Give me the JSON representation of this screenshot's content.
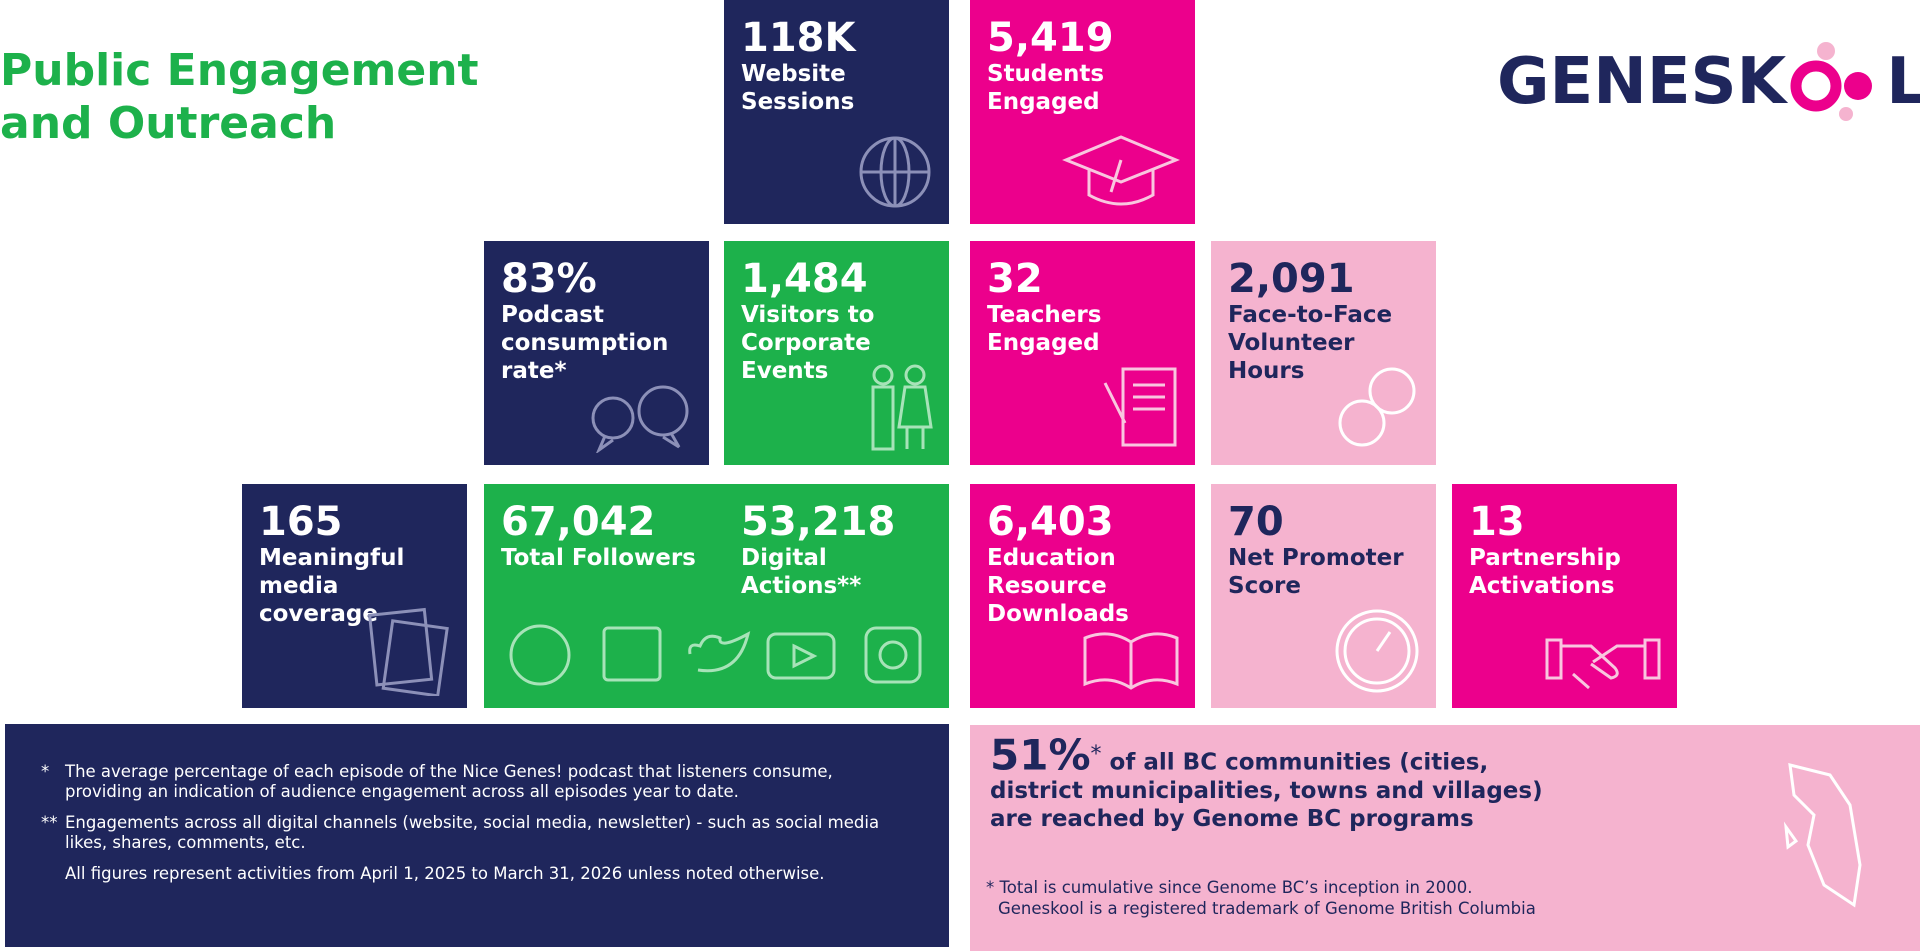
{
  "header": {
    "title_lines": [
      "Public Engagement",
      "and Outreach"
    ],
    "logo": {
      "left": "GENESK",
      "right": "L"
    }
  },
  "tiles": [
    {
      "value": "118K",
      "label": [
        "Website",
        "Sessions"
      ]
    },
    {
      "value": "5,419",
      "label": [
        "Students",
        "Engaged"
      ]
    },
    {
      "value": "83%",
      "label": [
        "Podcast",
        "consumption",
        "rate*"
      ]
    },
    {
      "value": "1,484",
      "label": [
        "Visitors to",
        "Corporate",
        "Events"
      ]
    },
    {
      "value": "32",
      "label": [
        "Teachers",
        "Engaged"
      ]
    },
    {
      "value": "2,091",
      "label": [
        "Face-to-Face",
        "Volunteer",
        "Hours"
      ]
    },
    {
      "value": "165",
      "label": [
        "Meaningful",
        "media",
        "coverage"
      ]
    },
    {
      "value": "67,042",
      "label": [
        "Total Followers"
      ]
    },
    {
      "value": "53,218",
      "label": [
        "Digital",
        "Actions**"
      ]
    },
    {
      "value": "6,403",
      "label": [
        "Education",
        "Resource",
        "Downloads"
      ]
    },
    {
      "value": "70",
      "label": [
        "Net Promoter",
        "Score"
      ]
    },
    {
      "value": "13",
      "label": [
        "Partnership",
        "Activations"
      ]
    }
  ],
  "footnotes": [
    {
      "mark": "*",
      "text": "The average percentage of each episode of the Nice Genes! podcast that listeners consume, providing an indication of audience engagement across all episodes year to date."
    },
    {
      "mark": "**",
      "text": "Engagements across all digital channels (website, social media, newsletter) - such as social media likes, shares, comments, etc."
    },
    {
      "text": "All figures represent activities from April 1, 2025 to March 31, 2026 unless noted otherwise."
    }
  ],
  "highlight": {
    "value": "51%",
    "mark": "*",
    "text": "of all BC communities (cities, district municipalities, towns and villages) are reached by Genome BC programs",
    "notes": [
      "* Total is cumulative since Genome BC’s inception in 2000.",
      "Geneskool is a registered trademark of Genome British Columbia"
    ]
  }
}
